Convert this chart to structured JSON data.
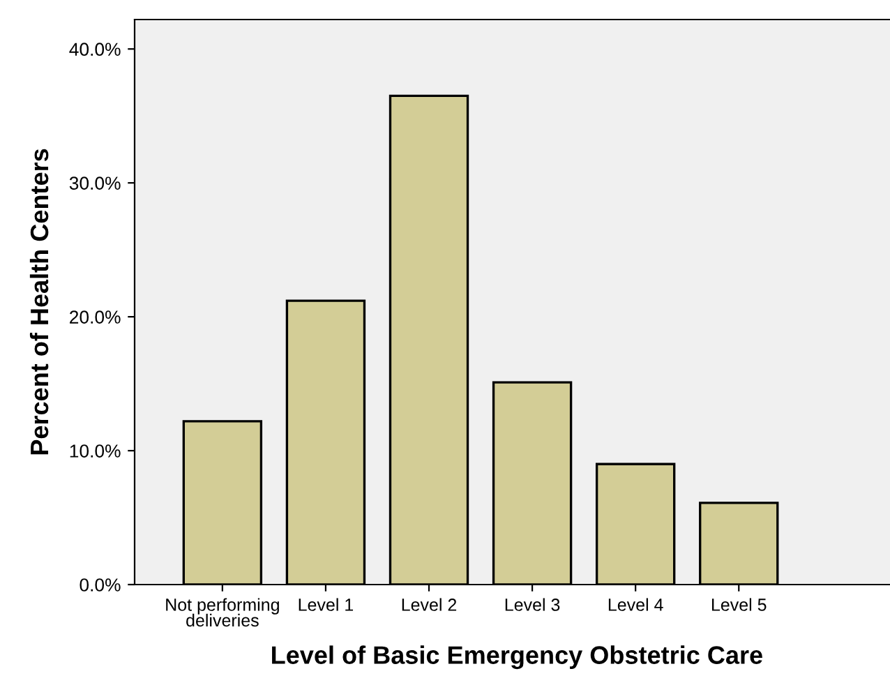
{
  "chart_data": {
    "type": "bar",
    "xlabel": "Level of Basic Emergency Obstetric Care",
    "ylabel": "Percent of Health Centers",
    "categories": [
      "Not performing\ndeliveries",
      "Level 1",
      "Level 2",
      "Level 3",
      "Level 4",
      "Level 5"
    ],
    "values": [
      12.2,
      21.2,
      36.5,
      15.1,
      9.0,
      6.1
    ],
    "color": "#d3cd96",
    "ylim": [
      0,
      42.2
    ],
    "yticks": [
      {
        "value": 0,
        "label": "0.0%"
      },
      {
        "value": 10,
        "label": "10.0%"
      },
      {
        "value": 20,
        "label": "20.0%"
      },
      {
        "value": 30,
        "label": "30.0%"
      },
      {
        "value": 40,
        "label": "40.0%"
      }
    ],
    "grid": false
  }
}
